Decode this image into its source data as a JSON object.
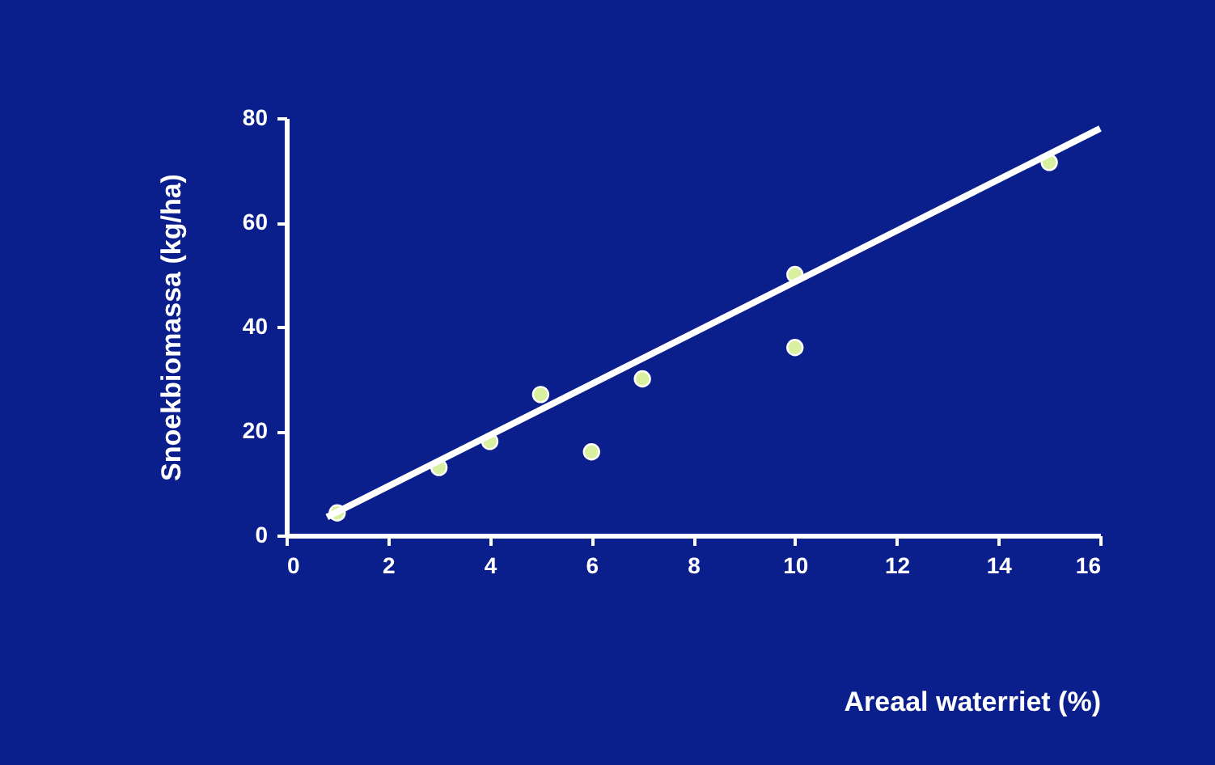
{
  "chart_data": {
    "type": "scatter",
    "xlabel": "Areaal waterriet (%)",
    "ylabel": "Snoekbiomassa (kg/ha)",
    "xlim": [
      0,
      16
    ],
    "xticks": [
      0,
      2,
      4,
      6,
      8,
      10,
      12,
      14,
      16
    ],
    "ylim": [
      0,
      80
    ],
    "yticks": [
      0,
      20,
      40,
      60,
      80
    ],
    "grid": false,
    "series": [
      {
        "color": "#d8f0a0",
        "marker": "circle",
        "x": [
          1,
          3,
          4,
          5,
          6,
          7,
          10,
          10,
          15
        ],
        "values": [
          4.3,
          13,
          18,
          27,
          16,
          30,
          50,
          36,
          71.5
        ]
      },
      {
        "type": "line",
        "marker": "none",
        "color": "#ffffff",
        "x": [
          0.8,
          16
        ],
        "values": [
          3.5,
          78
        ]
      }
    ]
  }
}
